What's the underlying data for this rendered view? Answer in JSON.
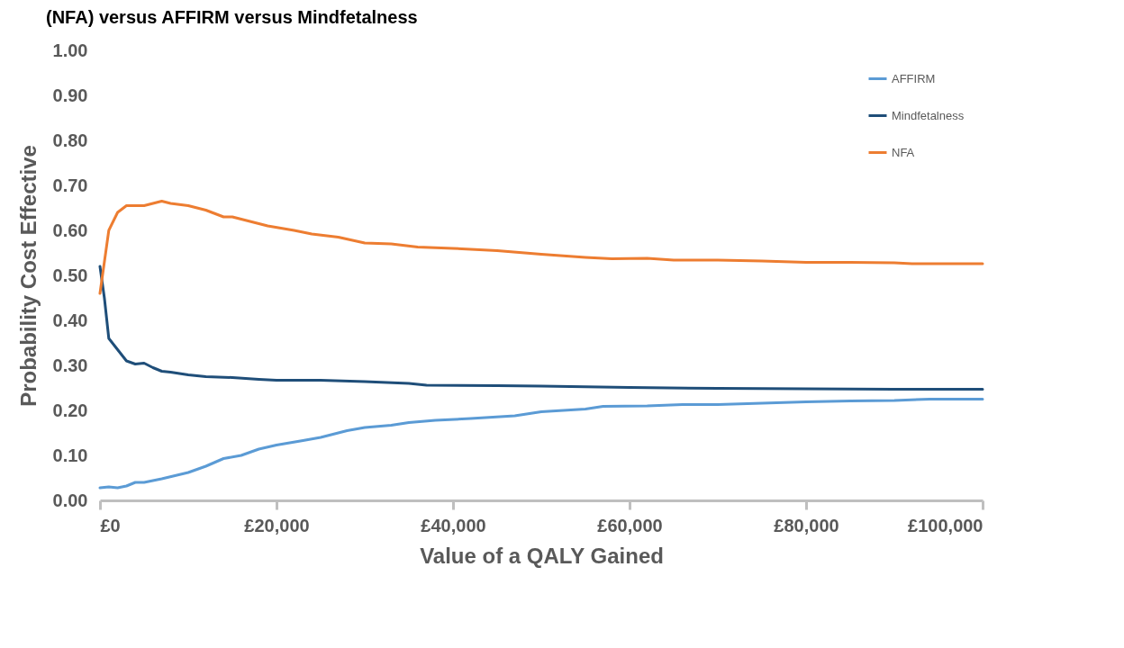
{
  "chart_data": {
    "type": "line",
    "title": "(NFA) versus AFFIRM versus Mindfetalness",
    "xlabel": "Value of a QALY Gained",
    "ylabel": "Probability Cost Effective",
    "xlim": [
      0,
      100000
    ],
    "xticks": [
      {
        "value": 0,
        "label": "£0"
      },
      {
        "value": 20000,
        "label": "£20,000"
      },
      {
        "value": 40000,
        "label": "£40,000"
      },
      {
        "value": 60000,
        "label": "£60,000"
      },
      {
        "value": 80000,
        "label": "£80,000"
      },
      {
        "value": 100000,
        "label": "£100,000"
      }
    ],
    "ylim": [
      0,
      1
    ],
    "yticks": [
      {
        "value": 0,
        "label": "0.00"
      },
      {
        "value": 0.1,
        "label": "0.10"
      },
      {
        "value": 0.2,
        "label": "0.20"
      },
      {
        "value": 0.3,
        "label": "0.30"
      },
      {
        "value": 0.4,
        "label": "0.40"
      },
      {
        "value": 0.5,
        "label": "0.50"
      },
      {
        "value": 0.6,
        "label": "0.60"
      },
      {
        "value": 0.7,
        "label": "0.70"
      },
      {
        "value": 0.8,
        "label": "0.80"
      },
      {
        "value": 0.9,
        "label": "0.90"
      },
      {
        "value": 1,
        "label": "1.00"
      }
    ],
    "grid": false,
    "legend": "top right",
    "marker": "none",
    "line_style": "solid",
    "series": [
      {
        "name": "AFFIRM",
        "color": "#5b9bd5",
        "x": [
          0,
          1000,
          2000,
          3000,
          4000,
          5000,
          7000,
          10000,
          12000,
          14000,
          16000,
          18000,
          20000,
          23000,
          25000,
          28000,
          30000,
          33000,
          35000,
          38000,
          42000,
          47000,
          50000,
          55000,
          57000,
          62000,
          66000,
          70000,
          75000,
          80000,
          85000,
          90000,
          94000,
          100000
        ],
        "values": [
          0.028,
          0.03,
          0.028,
          0.032,
          0.04,
          0.04,
          0.048,
          0.062,
          0.076,
          0.093,
          0.1,
          0.114,
          0.123,
          0.133,
          0.14,
          0.155,
          0.162,
          0.167,
          0.173,
          0.178,
          0.182,
          0.188,
          0.197,
          0.203,
          0.209,
          0.21,
          0.213,
          0.213,
          0.216,
          0.219,
          0.221,
          0.222,
          0.225,
          0.225
        ]
      },
      {
        "name": "Mindfetalness",
        "color": "#1f4e79",
        "x": [
          0,
          500,
          1000,
          2000,
          3000,
          4000,
          5000,
          6000,
          7000,
          8000,
          10000,
          12000,
          15000,
          18000,
          20000,
          25000,
          30000,
          35000,
          37000,
          45000,
          50000,
          60000,
          70000,
          80000,
          90000,
          100000
        ],
        "values": [
          0.52,
          0.45,
          0.36,
          0.335,
          0.31,
          0.303,
          0.305,
          0.295,
          0.287,
          0.285,
          0.279,
          0.275,
          0.273,
          0.269,
          0.267,
          0.267,
          0.264,
          0.26,
          0.256,
          0.255,
          0.254,
          0.251,
          0.249,
          0.248,
          0.247,
          0.247
        ]
      },
      {
        "name": "NFA",
        "color": "#ed7d31",
        "x": [
          0,
          1000,
          2000,
          3000,
          5000,
          7000,
          8000,
          10000,
          12000,
          14000,
          15000,
          17000,
          19000,
          22000,
          24000,
          27000,
          30000,
          33000,
          36000,
          40000,
          45000,
          50000,
          55000,
          58000,
          62000,
          65000,
          70000,
          75000,
          80000,
          85000,
          90000,
          92000,
          100000
        ],
        "values": [
          0.46,
          0.6,
          0.64,
          0.655,
          0.655,
          0.665,
          0.66,
          0.655,
          0.645,
          0.63,
          0.63,
          0.62,
          0.61,
          0.6,
          0.592,
          0.585,
          0.572,
          0.57,
          0.563,
          0.56,
          0.555,
          0.547,
          0.54,
          0.537,
          0.538,
          0.534,
          0.534,
          0.532,
          0.529,
          0.529,
          0.528,
          0.526,
          0.526
        ]
      }
    ]
  }
}
